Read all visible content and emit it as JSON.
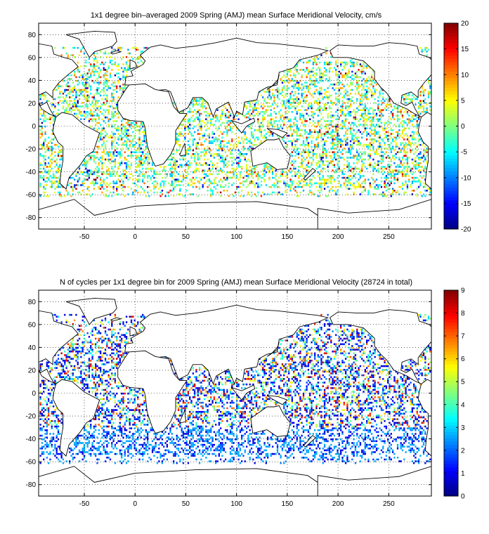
{
  "chart_data": [
    {
      "type": "heatmap",
      "title": "1x1 degree bin–averaged 2009 Spring (AMJ) mean Surface Meridional Velocity, cm/s",
      "xlim": [
        -95,
        292
      ],
      "ylim": [
        -90,
        90
      ],
      "xticks": [
        -50,
        0,
        50,
        100,
        150,
        200,
        250
      ],
      "xtick_labels": [
        "-50",
        "0",
        "50",
        "100",
        "150",
        "200",
        "250"
      ],
      "yticks": [
        -80,
        -60,
        -40,
        -20,
        0,
        20,
        40,
        60,
        80
      ],
      "ytick_labels": [
        "-80",
        "-60",
        "-40",
        "-20",
        "0",
        "20",
        "40",
        "60",
        "80"
      ],
      "grid": true,
      "colorbar": {
        "min": -20,
        "max": 20,
        "ticks": [
          -20,
          -15,
          -10,
          -5,
          0,
          5,
          10,
          15,
          20
        ],
        "tick_labels": [
          "-20",
          "-15",
          "-10",
          "-5",
          "0",
          "5",
          "10",
          "15",
          "20"
        ],
        "colormap": "jet"
      }
    },
    {
      "type": "heatmap",
      "title": "N of cycles per 1x1 degree bin for 2009 Spring (AMJ) mean Surface Meridional Velocity (28724 in total)",
      "xlim": [
        -95,
        292
      ],
      "ylim": [
        -90,
        90
      ],
      "xticks": [
        -50,
        0,
        50,
        100,
        150,
        200,
        250
      ],
      "xtick_labels": [
        "-50",
        "0",
        "50",
        "100",
        "150",
        "200",
        "250"
      ],
      "yticks": [
        -80,
        -60,
        -40,
        -20,
        0,
        20,
        40,
        60,
        80
      ],
      "ytick_labels": [
        "-80",
        "-60",
        "-40",
        "-20",
        "0",
        "20",
        "40",
        "60",
        "80"
      ],
      "grid": true,
      "colorbar": {
        "min": 0,
        "max": 9,
        "ticks": [
          0,
          1,
          2,
          3,
          4,
          5,
          6,
          7,
          8,
          9
        ],
        "tick_labels": [
          "0",
          "1",
          "2",
          "3",
          "4",
          "5",
          "6",
          "7",
          "8",
          "9"
        ],
        "colormap": "jet"
      }
    }
  ]
}
